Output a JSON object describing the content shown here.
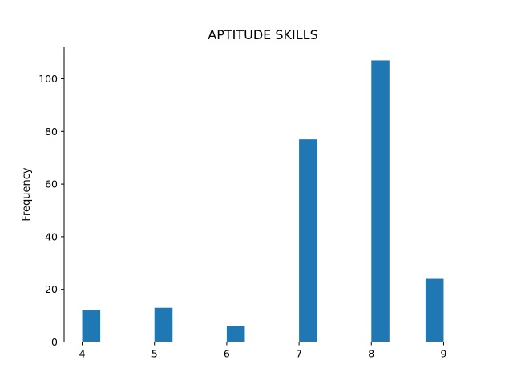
{
  "chart_data": {
    "type": "bar",
    "title": "APTITUDE SKILLS",
    "xlabel": "",
    "ylabel": "Frequency",
    "xlim": [
      3.75,
      9.25
    ],
    "ylim": [
      0,
      112
    ],
    "xticks": [
      4,
      5,
      6,
      7,
      8,
      9
    ],
    "yticks": [
      0,
      20,
      40,
      60,
      80,
      100
    ],
    "bins": [
      {
        "start": 4.0,
        "end": 4.25,
        "value": 12
      },
      {
        "start": 5.0,
        "end": 5.25,
        "value": 13
      },
      {
        "start": 6.0,
        "end": 6.25,
        "value": 6
      },
      {
        "start": 7.0,
        "end": 7.25,
        "value": 77
      },
      {
        "start": 8.0,
        "end": 8.25,
        "value": 107
      },
      {
        "start": 8.75,
        "end": 9.0,
        "value": 24
      }
    ],
    "color": "#1f77b4",
    "grid": false,
    "spines": [
      "left",
      "bottom"
    ]
  }
}
